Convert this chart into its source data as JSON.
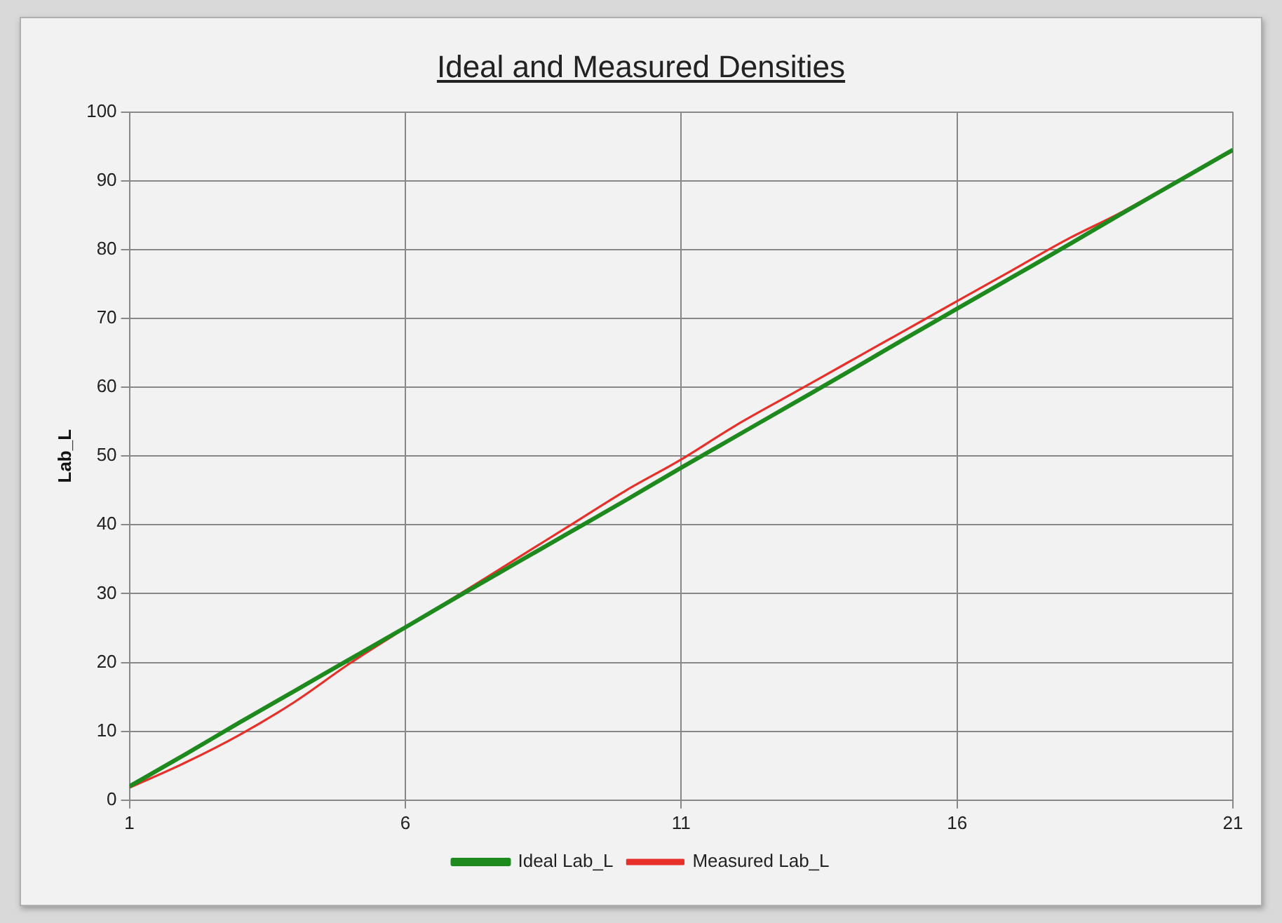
{
  "chart_data": {
    "type": "line",
    "title": "Ideal and Measured Densities",
    "ylabel": "Lab_L",
    "x": [
      1,
      2,
      3,
      4,
      5,
      6,
      7,
      8,
      9,
      10,
      11,
      12,
      13,
      14,
      15,
      16,
      17,
      18,
      19,
      20,
      21
    ],
    "xlim": [
      1,
      21
    ],
    "xticks": [
      1,
      6,
      11,
      16,
      21
    ],
    "ylim": [
      0,
      100
    ],
    "yticks": [
      0,
      10,
      20,
      30,
      40,
      50,
      60,
      70,
      80,
      90,
      100
    ],
    "grid": true,
    "legend": "bottom",
    "marker": "none",
    "series": [
      {
        "name": "Ideal Lab_L",
        "color": "#1e8a1e",
        "values": [
          2,
          6.6,
          11.3,
          15.9,
          20.5,
          25.1,
          29.8,
          34.4,
          39,
          43.6,
          48.3,
          52.9,
          57.5,
          62.1,
          66.8,
          71.4,
          76,
          80.6,
          85.3,
          89.9,
          94.5
        ]
      },
      {
        "name": "Measured Lab_L",
        "color": "#e8302a",
        "values": [
          1.8,
          5.4,
          9.5,
          14.3,
          19.9,
          25,
          30,
          35,
          40,
          45,
          49.5,
          54.5,
          59,
          63.5,
          68,
          72.5,
          77,
          81.5,
          85.5,
          90,
          94.3
        ]
      }
    ]
  }
}
